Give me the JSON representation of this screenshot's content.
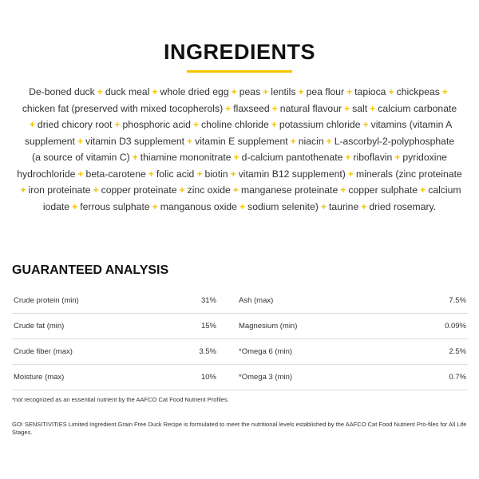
{
  "ingredients": {
    "title": "INGREDIENTS",
    "separator": "+",
    "lines": [
      [
        "De-boned duck",
        "duck meal",
        "whole dried egg",
        "peas",
        "lentils",
        "pea flour",
        "tapioca",
        "chickpeas",
        ""
      ],
      [
        "chicken fat (preserved with mixed tocopherols)",
        "flaxseed",
        "natural flavour",
        "salt",
        "calcium carbonate"
      ],
      [
        "",
        "dried chicory root",
        "phosphoric acid",
        "choline chloride",
        "potassium chloride",
        "vitamins (vitamin A"
      ],
      [
        "supplement",
        "vitamin D3 supplement",
        "vitamin E supplement",
        "niacin",
        "L-ascorbyl-2-polyphosphate"
      ],
      [
        "(a source of vitamin C)",
        "thiamine mononitrate",
        "d-calcium pantothenate",
        "riboflavin",
        "pyridoxine"
      ],
      [
        "hydrochloride",
        "beta-carotene",
        "folic acid",
        "biotin",
        "vitamin B12 supplement)",
        "minerals (zinc proteinate"
      ],
      [
        "",
        "iron proteinate",
        "copper proteinate",
        "zinc oxide",
        "manganese proteinate",
        "copper sulphate",
        "calcium"
      ],
      [
        "iodate",
        "ferrous sulphate",
        "manganous oxide",
        "sodium selenite)",
        "taurine",
        "dried rosemary."
      ]
    ]
  },
  "analysis": {
    "title": "GUARANTEED ANALYSIS",
    "rows": [
      {
        "l_label": "Crude protein (min)",
        "l_value": "31%",
        "r_label": "Ash (max)",
        "r_value": "7.5%"
      },
      {
        "l_label": "Crude fat (min)",
        "l_value": "15%",
        "r_label": "Magnesium (min)",
        "r_value": "0.09%"
      },
      {
        "l_label": "Crude fiber (max)",
        "l_value": "3.5%",
        "r_label": "*Omega 6 (min)",
        "r_value": "2.5%"
      },
      {
        "l_label": "Moisture (max)",
        "l_value": "10%",
        "r_label": "*Omega 3 (min)",
        "r_value": "0.7%"
      }
    ],
    "footnote": "*not recognized as an essential nutrient by the AAFCO Cat Food Nutrient Profiles.",
    "statement": "GO! SENSITIVITIES Limited Ingredient Grain Free Duck Recipe is formulated to meet the nutritional levels established by the AAFCO Cat Food Nutrient Pro-files for All Life Stages."
  },
  "colors": {
    "accent": "#f5c400"
  }
}
